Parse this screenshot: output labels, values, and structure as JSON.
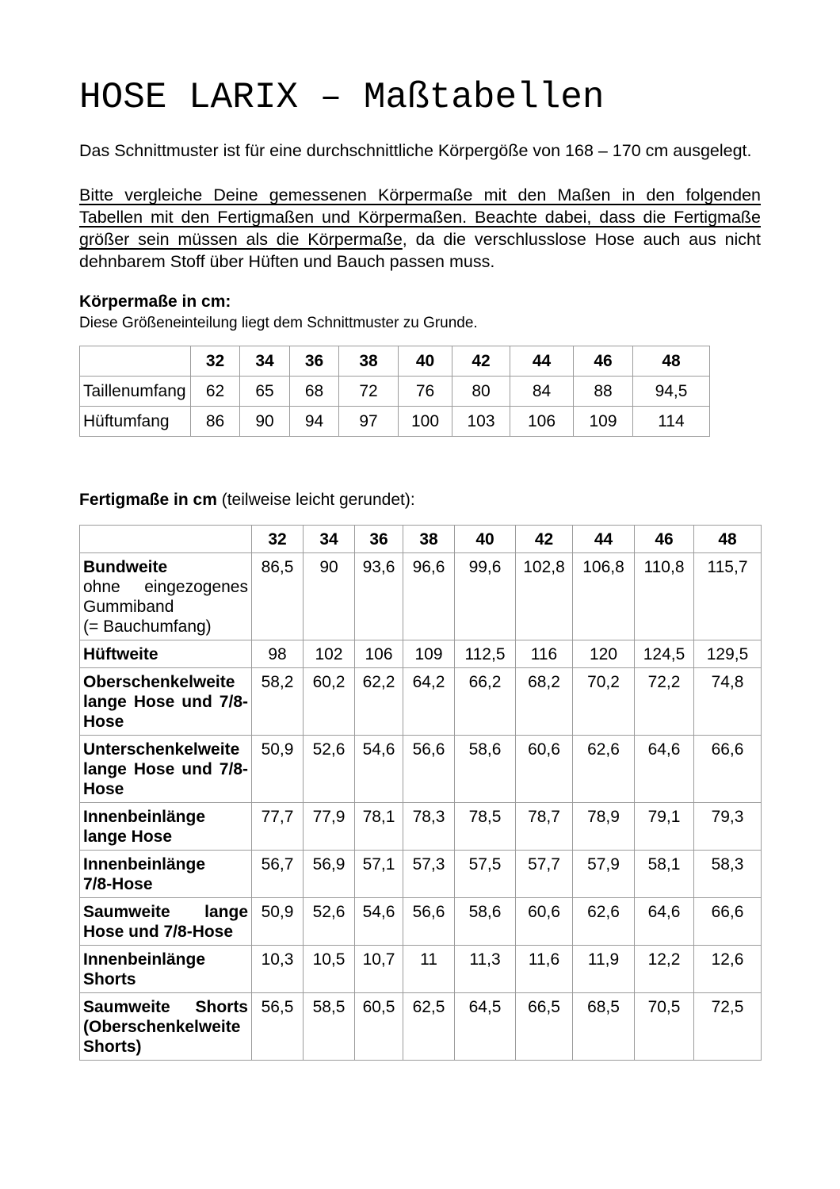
{
  "page": {
    "title": "HOSE LARIX – Maßtabellen",
    "intro": "Das Schnittmuster ist für eine durchschnittliche Körpergöße von 168 – 170 cm ausgelegt.",
    "advice_underlined": "Bitte vergleiche Deine gemessenen Körpermaße mit den Maßen in den folgenden Tabellen mit den Fertigmaßen und Körpermaßen. Beachte dabei, dass die Fertigmaße größer sein müssen als die Körpermaße",
    "advice_rest": ", da die verschlusslose Hose auch aus nicht dehnbarem Stoff über Hüften und Bauch passen muss."
  },
  "koerpermasse": {
    "heading": "Körpermaße in cm:",
    "subheading": "Diese Größeneinteilung liegt dem Schnittmuster zu Grunde.",
    "table": {
      "columns": [
        "32",
        "34",
        "36",
        "38",
        "40",
        "42",
        "44",
        "46",
        "48"
      ],
      "rows": [
        {
          "label": "Taillenumfang",
          "values": [
            "62",
            "65",
            "68",
            "72",
            "76",
            "80",
            "84",
            "88",
            "94,5"
          ]
        },
        {
          "label": "Hüftumfang",
          "values": [
            "86",
            "90",
            "94",
            "97",
            "100",
            "103",
            "106",
            "109",
            "114"
          ]
        }
      ]
    }
  },
  "fertigmasse": {
    "heading_bold": "Fertigmaße in cm",
    "heading_rest": " (teilweise leicht gerundet):",
    "table": {
      "columns": [
        "32",
        "34",
        "36",
        "38",
        "40",
        "42",
        "44",
        "46",
        "48"
      ],
      "rows": [
        {
          "label": "Bundweite",
          "sublabel": "ohne eingezogenes\nGummiband\n(= Bauchumfang)",
          "values": [
            "86,5",
            "90",
            "93,6",
            "96,6",
            "99,6",
            "102,8",
            "106,8",
            "110,8",
            "115,7"
          ]
        },
        {
          "label": "Hüftweite",
          "values": [
            "98",
            "102",
            "106",
            "109",
            "112,5",
            "116",
            "120",
            "124,5",
            "129,5"
          ]
        },
        {
          "label": "Oberschenkelweite\nlange Hose und 7/8-\nHose",
          "values": [
            "58,2",
            "60,2",
            "62,2",
            "64,2",
            "66,2",
            "68,2",
            "70,2",
            "72,2",
            "74,8"
          ]
        },
        {
          "label": "Unterschenkelweite\nlange Hose und 7/8-\nHose",
          "values": [
            "50,9",
            "52,6",
            "54,6",
            "56,6",
            "58,6",
            "60,6",
            "62,6",
            "64,6",
            "66,6"
          ]
        },
        {
          "label": "Innenbeinlänge\nlange Hose",
          "values": [
            "77,7",
            "77,9",
            "78,1",
            "78,3",
            "78,5",
            "78,7",
            "78,9",
            "79,1",
            "79,3"
          ]
        },
        {
          "label": "Innenbeinlänge\n7/8-Hose",
          "values": [
            "56,7",
            "56,9",
            "57,1",
            "57,3",
            "57,5",
            "57,7",
            "57,9",
            "58,1",
            "58,3"
          ]
        },
        {
          "label": "Saumweite lange\nHose und 7/8-Hose",
          "values": [
            "50,9",
            "52,6",
            "54,6",
            "56,6",
            "58,6",
            "60,6",
            "62,6",
            "64,6",
            "66,6"
          ]
        },
        {
          "label": "Innenbeinlänge\nShorts",
          "values": [
            "10,3",
            "10,5",
            "10,7",
            "11",
            "11,3",
            "11,6",
            "11,9",
            "12,2",
            "12,6"
          ]
        },
        {
          "label": "Saumweite Shorts\n(Oberschenkelweite\nShorts)",
          "values": [
            "56,5",
            "58,5",
            "60,5",
            "62,5",
            "64,5",
            "66,5",
            "68,5",
            "70,5",
            "72,5"
          ]
        }
      ]
    }
  }
}
